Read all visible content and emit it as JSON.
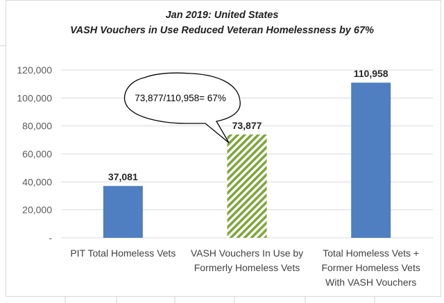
{
  "chart_data": {
    "type": "bar",
    "title": [
      "Jan 2019:  United States",
      "VASH Vouchers in Use Reduced Veteran Homelessness by 67%"
    ],
    "categories": [
      [
        "PIT Total Homeless Vets"
      ],
      [
        "VASH Vouchers In Use by",
        "Formerly Homeless Vets"
      ],
      [
        "Total Homeless Vets +",
        "Former Homeless Vets",
        "With VASH Vouchers"
      ]
    ],
    "values": [
      37081,
      73877,
      110958
    ],
    "data_labels": [
      "37,081",
      "73,877",
      "110,958"
    ],
    "bar_styles": [
      "solid",
      "hatched",
      "solid"
    ],
    "colors": {
      "bar": "#4f7ec1",
      "hatch": "#7da63a",
      "grid": "#d9d9d9",
      "axis_text": "#595959"
    },
    "ylim": [
      0,
      120000
    ],
    "yticks": [
      0,
      20000,
      40000,
      60000,
      80000,
      100000,
      120000
    ],
    "ytick_labels": [
      "-",
      "20,000",
      "40,000",
      "60,000",
      "80,000",
      "100,000",
      "120,000"
    ],
    "grid": true,
    "legend": "none",
    "annotation": "73,877/110,958= 67%"
  }
}
